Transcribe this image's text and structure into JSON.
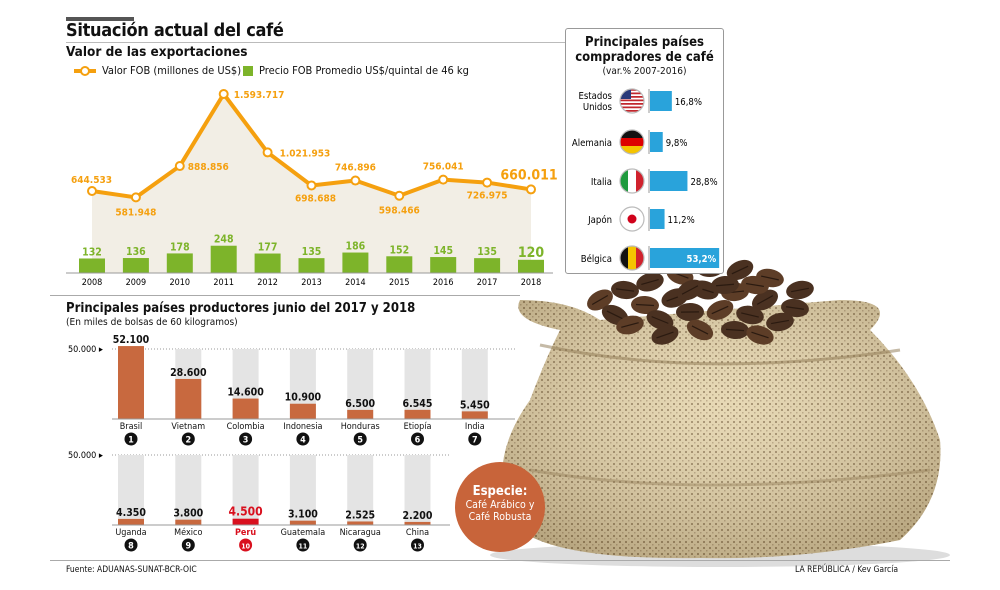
{
  "header": {
    "title": "Situación actual del café",
    "subtitle": "Valor de las exportaciones"
  },
  "legend": {
    "line_label": "Valor FOB (millones de US$)",
    "bar_label": "Precio FOB Promedio US$/quintal de 46 kg"
  },
  "colors": {
    "line": "#f5a00f",
    "area": "#f2eee5",
    "green_bar": "#7db42a",
    "blue_bar": "#29a3db",
    "producer_bar": "#c8693f",
    "producer_bg": "#e4e4e4",
    "highlight": "#d9101e",
    "callout": "#c8643a"
  },
  "chart_data": [
    {
      "type": "line",
      "title": "Valor de las exportaciones",
      "categories": [
        "2008",
        "2009",
        "2010",
        "2011",
        "2012",
        "2013",
        "2014",
        "2015",
        "2016",
        "2017",
        "2018"
      ],
      "series": [
        {
          "name": "Valor FOB (millones de US$)",
          "type": "line",
          "values": [
            644533,
            581948,
            888856,
            1593717,
            1021953,
            698688,
            746896,
            598466,
            756041,
            726975,
            660011
          ]
        },
        {
          "name": "Precio FOB Promedio US$/quintal de 46 kg",
          "type": "bar",
          "values": [
            132,
            136,
            178,
            248,
            177,
            135,
            186,
            152,
            145,
            135,
            120
          ]
        }
      ],
      "legend": "top-left",
      "grid": false
    },
    {
      "type": "bar",
      "orientation": "horizontal",
      "title": "Principales países compradores de café",
      "subtitle": "(var.% 2007-2016)",
      "categories": [
        "Estados Unidos",
        "Alemania",
        "Italia",
        "Japón",
        "Bélgica"
      ],
      "flags": [
        "us-flag",
        "germany-flag",
        "italy-flag",
        "japan-flag",
        "belgium-flag"
      ],
      "values": [
        16.8,
        9.8,
        28.8,
        11.2,
        53.2
      ],
      "unit": "%"
    },
    {
      "type": "bar",
      "title": "Principales países productores junio del 2017 y 2018",
      "subtitle": "(En miles de bolsas de 60 kilogramos)",
      "reference_line": {
        "value": 50000,
        "label": "50.000"
      },
      "categories": [
        "Brasil",
        "Vietnam",
        "Colombia",
        "Indonesia",
        "Honduras",
        "Etiopía",
        "India",
        "Uganda",
        "México",
        "Perú",
        "Guatemala",
        "Nicaragua",
        "China"
      ],
      "values": [
        52100,
        28600,
        14600,
        10900,
        6500,
        6545,
        5450,
        4350,
        3800,
        4500,
        3100,
        2525,
        2200
      ],
      "ranks": [
        1,
        2,
        3,
        4,
        5,
        6,
        7,
        8,
        9,
        10,
        11,
        12,
        13
      ],
      "highlight": "Perú",
      "ylim": [
        0,
        50000
      ]
    }
  ],
  "callout": {
    "title": "Especie:",
    "line1": "Café Arábico y",
    "line2": "Café Robusta"
  },
  "footer": {
    "source": "Fuente: ADUANAS-SUNAT-BCR-OIC",
    "credit": "LA REPÚBLICA / Kev García"
  }
}
